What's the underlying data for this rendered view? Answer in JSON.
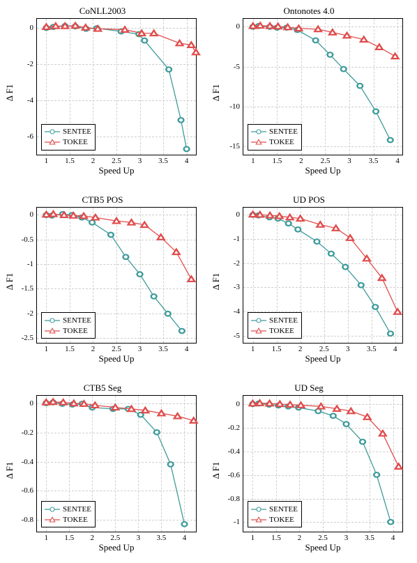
{
  "global": {
    "series": [
      {
        "name": "SENTEE",
        "color": "#3f9b9b",
        "marker": "circle"
      },
      {
        "name": "TOKEE",
        "color": "#e04c4c",
        "marker": "triangle"
      }
    ],
    "x_label": "Speed Up",
    "y_label": "Δ F1",
    "grid_color": "#cfcfcf",
    "background_color": "#ffffff",
    "label_fontsize": 13,
    "tick_fontsize": 11,
    "title_fontsize": 13,
    "line_width": 1.3,
    "marker_size": 3.2
  },
  "panels": [
    {
      "id": "conll",
      "title": "CoNLL2003",
      "xlim": [
        0.8,
        4.2
      ],
      "xticks": [
        1,
        1.5,
        2,
        2.5,
        3,
        3.5,
        4
      ],
      "ylim": [
        -7,
        0.5
      ],
      "yticks": [
        -6,
        -4,
        -2,
        0
      ],
      "legend_pos": "bottom-left",
      "series": [
        {
          "x": [
            1.0,
            1.15,
            1.4,
            1.62,
            1.85,
            2.08,
            2.6,
            2.98,
            3.1,
            3.62,
            3.88,
            4.0
          ],
          "y": [
            0.0,
            0.05,
            0.1,
            0.08,
            -0.05,
            -0.02,
            -0.2,
            -0.35,
            -0.7,
            -2.3,
            -5.1,
            -6.7
          ]
        },
        {
          "x": [
            1.0,
            1.2,
            1.4,
            1.62,
            1.84,
            2.1,
            2.68,
            3.04,
            3.3,
            3.85,
            4.1,
            4.2
          ],
          "y": [
            0.05,
            0.1,
            0.1,
            0.12,
            0.02,
            -0.05,
            -0.1,
            -0.3,
            -0.3,
            -0.85,
            -0.95,
            -1.35
          ]
        }
      ]
    },
    {
      "id": "ontonotes",
      "title": "Ontonotes 4.0",
      "xlim": [
        0.8,
        4.1
      ],
      "xticks": [
        1,
        1.5,
        2,
        2.5,
        3,
        3.5,
        4
      ],
      "ylim": [
        -16,
        1
      ],
      "yticks": [
        -15,
        -10,
        -5,
        0
      ],
      "legend_pos": "bottom-left",
      "series": [
        {
          "x": [
            1.0,
            1.12,
            1.35,
            1.5,
            1.7,
            1.92,
            2.3,
            2.6,
            2.88,
            3.22,
            3.55,
            3.85
          ],
          "y": [
            0.0,
            0.1,
            0.0,
            -0.1,
            -0.1,
            -0.4,
            -1.7,
            -3.5,
            -5.3,
            -7.4,
            -10.6,
            -14.2
          ]
        },
        {
          "x": [
            1.0,
            1.15,
            1.35,
            1.52,
            1.72,
            1.95,
            2.35,
            2.65,
            2.95,
            3.3,
            3.62,
            3.95
          ],
          "y": [
            0.1,
            0.15,
            0.1,
            0.05,
            -0.05,
            -0.2,
            -0.3,
            -0.7,
            -1.1,
            -1.6,
            -2.55,
            -3.7
          ]
        }
      ]
    },
    {
      "id": "ctb5pos",
      "title": "CTB5 POS",
      "xlim": [
        0.8,
        4.2
      ],
      "xticks": [
        1,
        1.5,
        2,
        2.5,
        3,
        3.5,
        4
      ],
      "ylim": [
        -2.6,
        0.15
      ],
      "yticks": [
        -2.5,
        -2,
        -1.5,
        -1,
        -0.5,
        0
      ],
      "legend_pos": "bottom-left",
      "series": [
        {
          "x": [
            1.0,
            1.12,
            1.35,
            1.55,
            1.76,
            1.98,
            2.38,
            2.7,
            3.0,
            3.3,
            3.6,
            3.9
          ],
          "y": [
            0.0,
            -0.01,
            0.02,
            0.0,
            -0.05,
            -0.15,
            -0.4,
            -0.85,
            -1.2,
            -1.65,
            -2.0,
            -2.35
          ]
        },
        {
          "x": [
            1.0,
            1.15,
            1.38,
            1.58,
            1.8,
            2.05,
            2.5,
            2.82,
            3.1,
            3.45,
            3.78,
            4.1
          ],
          "y": [
            0.01,
            0.02,
            0.0,
            -0.01,
            -0.02,
            -0.05,
            -0.12,
            -0.15,
            -0.2,
            -0.45,
            -0.75,
            -1.3
          ]
        }
      ]
    },
    {
      "id": "udpos",
      "title": "UD POS",
      "xlim": [
        0.8,
        4.15
      ],
      "xticks": [
        1,
        1.5,
        2,
        2.5,
        3,
        3.5,
        4
      ],
      "ylim": [
        -5.3,
        0.3
      ],
      "yticks": [
        -5,
        -4,
        -3,
        -2,
        -1,
        0
      ],
      "legend_pos": "bottom-left",
      "series": [
        {
          "x": [
            1.0,
            1.12,
            1.35,
            1.53,
            1.75,
            1.95,
            2.35,
            2.65,
            2.95,
            3.28,
            3.58,
            3.9
          ],
          "y": [
            0.0,
            -0.02,
            -0.1,
            -0.15,
            -0.35,
            -0.6,
            -1.1,
            -1.6,
            -2.15,
            -2.9,
            -3.8,
            -4.9
          ]
        },
        {
          "x": [
            1.0,
            1.15,
            1.36,
            1.56,
            1.78,
            2.0,
            2.42,
            2.75,
            3.05,
            3.4,
            3.72,
            4.05
          ],
          "y": [
            0.02,
            0.01,
            -0.02,
            -0.05,
            -0.1,
            -0.15,
            -0.4,
            -0.55,
            -0.95,
            -1.8,
            -2.6,
            -4.0
          ]
        }
      ]
    },
    {
      "id": "ctb5seg",
      "title": "CTB5 Seg",
      "xlim": [
        0.8,
        4.25
      ],
      "xticks": [
        1,
        1.5,
        2,
        2.5,
        3,
        3.5,
        4
      ],
      "ylim": [
        -0.88,
        0.05
      ],
      "yticks": [
        -0.8,
        -0.6,
        -0.4,
        -0.2,
        0
      ],
      "legend_pos": "bottom-left",
      "series": [
        {
          "x": [
            1.0,
            1.15,
            1.35,
            1.57,
            1.78,
            2.0,
            2.45,
            2.78,
            3.05,
            3.4,
            3.7,
            4.0
          ],
          "y": [
            0.0,
            0.005,
            -0.005,
            -0.01,
            -0.005,
            -0.03,
            -0.04,
            -0.04,
            -0.08,
            -0.2,
            -0.42,
            -0.83
          ]
        },
        {
          "x": [
            1.0,
            1.15,
            1.37,
            1.6,
            1.82,
            2.06,
            2.5,
            2.85,
            3.15,
            3.5,
            3.85,
            4.2
          ],
          "y": [
            0.005,
            0.008,
            0.005,
            -0.002,
            -0.005,
            -0.015,
            -0.03,
            -0.04,
            -0.05,
            -0.07,
            -0.09,
            -0.12
          ]
        }
      ]
    },
    {
      "id": "udseg",
      "title": "UD Seg",
      "xlim": [
        0.8,
        4.2
      ],
      "xticks": [
        1,
        1.5,
        2,
        2.5,
        3,
        3.5,
        4
      ],
      "ylim": [
        -1.08,
        0.07
      ],
      "yticks": [
        -1,
        -0.8,
        -0.6,
        -0.4,
        -0.2,
        0
      ],
      "legend_pos": "bottom-left",
      "series": [
        {
          "x": [
            1.0,
            1.13,
            1.35,
            1.55,
            1.76,
            1.98,
            2.4,
            2.72,
            3.0,
            3.35,
            3.65,
            3.95
          ],
          "y": [
            0.0,
            0.005,
            -0.005,
            -0.012,
            -0.02,
            -0.03,
            -0.06,
            -0.1,
            -0.17,
            -0.32,
            -0.6,
            -1.0
          ]
        },
        {
          "x": [
            1.0,
            1.15,
            1.36,
            1.58,
            1.8,
            2.03,
            2.46,
            2.8,
            3.1,
            3.45,
            3.78,
            4.12
          ],
          "y": [
            0.005,
            0.008,
            0.005,
            0.0,
            -0.005,
            -0.01,
            -0.02,
            -0.04,
            -0.06,
            -0.11,
            -0.25,
            -0.53
          ]
        }
      ]
    }
  ]
}
